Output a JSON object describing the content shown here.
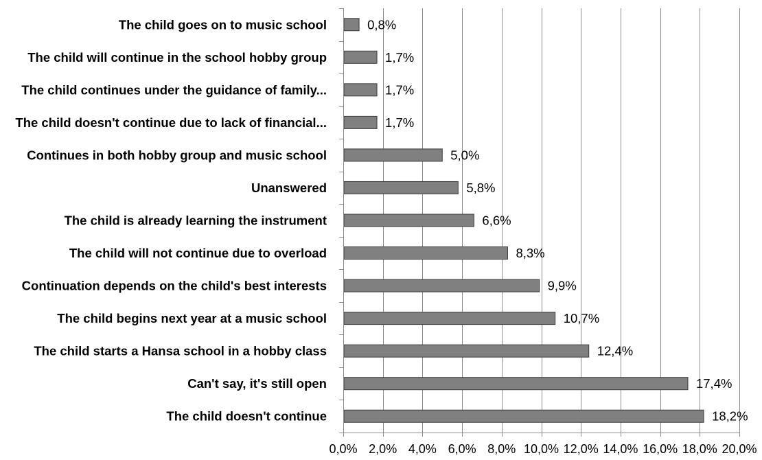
{
  "chart_data": {
    "type": "bar",
    "orientation": "horizontal",
    "categories": [
      "The child goes on to music school",
      "The child will continue in the school hobby group",
      "The child continues under the guidance of family...",
      "The child doesn't continue due to lack of financial...",
      "Continues in both hobby group and  music school",
      "Unanswered",
      "The child is already learning the instrument",
      "The child will not continue due to overload",
      "Continuation depends on the child's best interests",
      "The child begins next year at a music school",
      "The child starts a Hansa school in a hobby class",
      "Can't say, it's still open",
      "The child doesn't continue"
    ],
    "values": [
      0.8,
      1.7,
      1.7,
      1.7,
      5.0,
      5.8,
      6.6,
      8.3,
      9.9,
      10.7,
      12.4,
      17.4,
      18.2
    ],
    "value_labels": [
      "0,8%",
      "1,7%",
      "1,7%",
      "1,7%",
      "5,0%",
      "5,8%",
      "6,6%",
      "8,3%",
      "9,9%",
      "10,7%",
      "12,4%",
      "17,4%",
      "18,2%"
    ],
    "title": "",
    "xlabel": "",
    "ylabel": "",
    "xlim": [
      0,
      20
    ],
    "x_ticks": [
      0,
      2,
      4,
      6,
      8,
      10,
      12,
      14,
      16,
      18,
      20
    ],
    "x_tick_labels": [
      "0,0%",
      "2,0%",
      "4,0%",
      "6,0%",
      "8,0%",
      "10,0%",
      "12,0%",
      "14,0%",
      "16,0%",
      "18,0%",
      "20,0%"
    ],
    "grid": "vertical",
    "legend": "none",
    "colors": {
      "bar_fill": "#808080",
      "bar_stroke": "#3a3a3a",
      "grid": "#8c8c8c",
      "axis": "#8c8c8c"
    }
  }
}
